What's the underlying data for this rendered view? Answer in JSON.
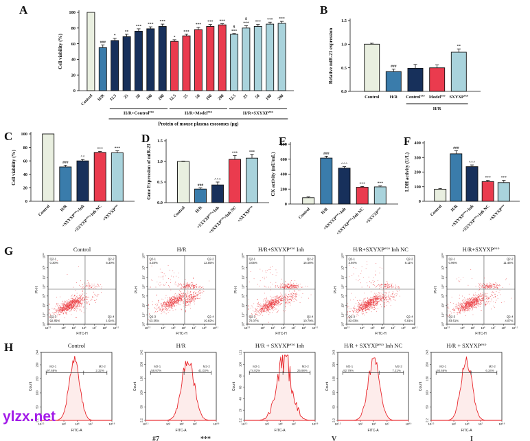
{
  "letters": {
    "a": "A",
    "b": "B",
    "c": "C",
    "d": "D",
    "e": "E",
    "f": "F",
    "g": "G",
    "h": "H"
  },
  "watermark": {
    "text": "ylzx.net",
    "color": "#a21ae8"
  },
  "artifacts": [
    {
      "text": "#7"
    },
    {
      "text": "***"
    },
    {
      "text": "V"
    },
    {
      "text": "I"
    }
  ],
  "palette": {
    "cream": "#e9efe0",
    "blue": "#3a7cab",
    "navy": "#17305b",
    "red": "#ea3b4e",
    "ltblue": "#a9d3dc",
    "bar_stroke": "#111111",
    "dot": "#e8252a",
    "hist_fill": "#fdeceb",
    "hist_stroke": "#e8252a",
    "axis": "#111111"
  },
  "chart_data": [
    {
      "id": "A",
      "type": "bar",
      "ylabel": "Cell viability (%)",
      "ylim": [
        0,
        100
      ],
      "yticks": [
        0,
        20,
        40,
        60,
        80,
        100
      ],
      "categories": [
        "Control",
        "H/R",
        "12.5",
        "25",
        "50",
        "100",
        "200",
        "12.5",
        "25",
        "50",
        "100",
        "200",
        "12.5",
        "25",
        "50",
        "100",
        "200"
      ],
      "values": [
        100,
        55,
        64,
        69,
        76,
        79,
        82,
        63,
        70,
        78,
        82,
        84,
        72,
        80,
        82,
        85,
        86
      ],
      "errors": [
        0,
        3.5,
        3,
        3,
        3,
        2.5,
        3,
        2,
        2,
        3,
        2.5,
        1.5,
        1,
        3,
        2.5,
        2.5,
        2.5
      ],
      "sig": [
        "",
        "###",
        "*",
        "**",
        "***",
        "***",
        "***",
        "*",
        "***",
        "***",
        "***",
        "***",
        "$\n***",
        "$\n***",
        "***",
        "***",
        "***"
      ],
      "colors": [
        "cream",
        "blue",
        "navy",
        "navy",
        "navy",
        "navy",
        "navy",
        "red",
        "red",
        "red",
        "red",
        "red",
        "ltblue",
        "ltblue",
        "ltblue",
        "ltblue",
        "ltblue"
      ],
      "groups": [
        {
          "label": "H/R+Control^{exo}",
          "from": 2,
          "to": 6
        },
        {
          "label": "H/R+Model^{exo}",
          "from": 7,
          "to": 11
        },
        {
          "label": "H/R+SXYXP^{exo}",
          "from": 12,
          "to": 16
        }
      ],
      "xlabel": "Protein of mouse plasma exosomes (μg)",
      "xspan": [
        2,
        16
      ]
    },
    {
      "id": "B",
      "type": "bar",
      "ylabel": "Relative miR-21 expression",
      "ylim": [
        0,
        1.5
      ],
      "yticks": [
        "0.0",
        "0.5",
        "1.0",
        "1.5"
      ],
      "categories": [
        "Control",
        "H/R",
        "Control^{exo}",
        "Model^{exo}",
        "SXYXP^{exo}"
      ],
      "values": [
        1.0,
        0.42,
        0.49,
        0.5,
        0.83
      ],
      "errors": [
        0.02,
        0.05,
        0.08,
        0.06,
        0.07
      ],
      "sig": [
        "",
        "###",
        "",
        "",
        "**"
      ],
      "colors": [
        "cream",
        "blue",
        "navy",
        "red",
        "ltblue"
      ],
      "groups": [
        {
          "label": "H/R",
          "from": 2,
          "to": 4
        }
      ]
    },
    {
      "id": "C",
      "type": "bar",
      "ylabel": "Cell viability (%)",
      "ylim": [
        0,
        100
      ],
      "yticks": [
        0,
        20,
        40,
        60,
        80,
        100
      ],
      "categories": [
        "Control",
        "H/R",
        "+SXYXP^{exo}+Inh",
        "+SXYXP^{exo}+Inh NC",
        "+SXYXP^{exo}"
      ],
      "values": [
        100,
        51,
        60,
        72.5,
        72
      ],
      "errors": [
        0,
        2.5,
        2,
        1.5,
        3
      ],
      "sig": [
        "",
        "###",
        "^^",
        "***",
        "***"
      ],
      "colors": [
        "cream",
        "blue",
        "navy",
        "red",
        "ltblue"
      ]
    },
    {
      "id": "D",
      "type": "bar",
      "ylabel": "Gene Expression of miR-21",
      "ylim": [
        0,
        1.5
      ],
      "yticks": [
        "0.0",
        "0.5",
        "1.0",
        "1.5"
      ],
      "categories": [
        "Control",
        "H/R",
        "+SXYXP^{exo}+Inh",
        "+SXYXP^{exo}+Inh NC",
        "+SXYXP^{exo}"
      ],
      "values": [
        1.0,
        0.33,
        0.43,
        1.05,
        1.08
      ],
      "errors": [
        0.01,
        0.03,
        0.07,
        0.09,
        0.09
      ],
      "sig": [
        "",
        "###",
        "^^^",
        "***",
        "***"
      ],
      "colors": [
        "cream",
        "blue",
        "navy",
        "red",
        "ltblue"
      ]
    },
    {
      "id": "E",
      "type": "bar",
      "ylabel": "CK activity (mU/mL)",
      "ylim": [
        0,
        800
      ],
      "yticks": [
        0,
        200,
        400,
        600,
        800
      ],
      "categories": [
        "Control",
        "H/R",
        "+SXYXP^{exo}+Inh",
        "+SXYXP^{exo}+Inh NC",
        "+SXYXP^{exo}"
      ],
      "values": [
        85,
        615,
        480,
        225,
        230
      ],
      "errors": [
        10,
        25,
        20,
        10,
        12
      ],
      "sig": [
        "",
        "###",
        "^^^",
        "***",
        "***"
      ],
      "colors": [
        "cream",
        "blue",
        "navy",
        "red",
        "ltblue"
      ]
    },
    {
      "id": "F",
      "type": "bar",
      "ylabel": "LDH activity (U/L)",
      "ylim": [
        0,
        400
      ],
      "yticks": [
        0,
        100,
        200,
        300,
        400
      ],
      "categories": [
        "Control",
        "H/R",
        "+SXYXP^{exo}+Inh",
        "+SXYXP^{exo}+Inh NC",
        "+SXYXP^{exo}"
      ],
      "values": [
        83,
        325,
        237,
        135,
        128
      ],
      "errors": [
        5,
        22,
        12,
        8,
        15
      ],
      "sig": [
        "",
        "###",
        "^^^",
        "***",
        "***"
      ],
      "colors": [
        "cream",
        "blue",
        "navy",
        "red",
        "ltblue"
      ]
    },
    {
      "id": "G1",
      "type": "scatter",
      "title": "Control",
      "xlabel": "FITC-H",
      "ylabel": "PI-H",
      "xticks": [
        "2.5",
        "4",
        "5",
        "6",
        "7",
        "8",
        "9.1"
      ],
      "yticks": [
        "2",
        "3",
        "4",
        "5",
        "6",
        "7",
        "8",
        "9.3"
      ],
      "quadrant_labels": [
        "Q2-1",
        "Q2-2",
        "Q2-3",
        "Q2-4"
      ],
      "quadrant_values": [
        "0.30%",
        "5.30%",
        "92.86%",
        "1.54%"
      ]
    },
    {
      "id": "G2",
      "type": "scatter",
      "title": "H/R",
      "xlabel": "FITC-H",
      "ylabel": "PI-H",
      "xticks": [
        "2.5",
        "4",
        "5",
        "6",
        "7",
        "8",
        "9.1"
      ],
      "yticks": [
        "2",
        "3",
        "4",
        "5",
        "6",
        "7",
        "8",
        "9.3"
      ],
      "quadrant_labels": [
        "Q2-1",
        "Q2-2",
        "Q2-3",
        "Q2-4"
      ],
      "quadrant_values": [
        "4.28%",
        "12.55%",
        "63.35%",
        "19.82%"
      ]
    },
    {
      "id": "G3",
      "type": "scatter",
      "title": "H/R+SXYXP^{exo} Inh",
      "xlabel": "FITC-H",
      "ylabel": "PI-H",
      "xticks": [
        "2.5",
        "4",
        "5",
        "6",
        "7",
        "8",
        "9.1"
      ],
      "yticks": [
        "2",
        "3",
        "4",
        "5",
        "6",
        "7",
        "8",
        "9.3"
      ],
      "quadrant_labels": [
        "Q2-1",
        "Q2-2",
        "Q2-3",
        "Q2-4"
      ],
      "quadrant_values": [
        "3.05%",
        "16.08%",
        "70.07%",
        "10.79%"
      ]
    },
    {
      "id": "G4",
      "type": "scatter",
      "title": "H/R+SXYXP^{exo} Inh NC",
      "xlabel": "FITC-H",
      "ylabel": "PI-H",
      "xticks": [
        "2.5",
        "4",
        "5",
        "6",
        "7",
        "8",
        "9.1"
      ],
      "yticks": [
        "2",
        "3",
        "4",
        "5",
        "6",
        "7",
        "8",
        "9.3"
      ],
      "quadrant_labels": [
        "Q2-1",
        "Q2-2",
        "Q2-3",
        "Q2-4"
      ],
      "quadrant_values": [
        "3.94%",
        "8.11%",
        "82.03%",
        "5.91%"
      ]
    },
    {
      "id": "G5",
      "type": "scatter",
      "title": "H/R+SXYXP^{exo}",
      "xlabel": "FITC-H",
      "ylabel": "PI-H",
      "xticks": [
        "2.5",
        "4",
        "5",
        "6",
        "7",
        "8",
        "9.1"
      ],
      "yticks": [
        "2",
        "3",
        "4",
        "5",
        "6",
        "7",
        "8",
        "9.3"
      ],
      "quadrant_labels": [
        "Q2-1",
        "Q2-2",
        "Q2-3",
        "Q2-4"
      ],
      "quadrant_values": [
        "0.96%",
        "11.46%",
        "83.51%",
        "4.07%"
      ]
    },
    {
      "id": "H1",
      "type": "histogram",
      "title": "Control",
      "xlabel": "FITC-A",
      "ylabel": "Count",
      "xticks": [
        "3.3",
        "5",
        "6",
        "7",
        "8.6"
      ],
      "yticks": [
        244,
        200,
        150,
        100,
        50,
        2.2
      ],
      "markers": {
        "m1_label": "M2-1",
        "m1_value": "97.68%",
        "m2_label": "M2-2",
        "m2_value": "2.32%"
      }
    },
    {
      "id": "H2",
      "type": "histogram",
      "title": "H/R",
      "xlabel": "FITC-A",
      "ylabel": "Count",
      "xticks": [
        "3.3",
        "5",
        "6",
        "7",
        "8.6"
      ],
      "yticks": [
        242,
        200,
        150,
        100,
        50,
        2.2
      ],
      "markers": {
        "m1_label": "M2-1",
        "m1_value": "58.97%",
        "m2_label": "M2-2",
        "m2_value": "41.03%"
      }
    },
    {
      "id": "H3",
      "type": "histogram",
      "title": "H/R + SXYXP^{exo} Inh",
      "xlabel": "FITC-A",
      "ylabel": "Count",
      "xticks": [
        "3.3",
        "5",
        "6",
        "7",
        "8.6"
      ],
      "yticks": [
        121,
        100,
        80,
        60,
        40,
        20,
        2.2
      ],
      "markers": {
        "m1_label": "M2-1",
        "m1_value": "74.02%",
        "m2_label": "M2-2",
        "m2_value": "25.98%"
      }
    },
    {
      "id": "H4",
      "type": "histogram",
      "title": "H/R + SXYXP^{exo} Inh NC",
      "xlabel": "FITC-A",
      "ylabel": "Count",
      "xticks": [
        "3.3",
        "5",
        "6",
        "7",
        "8.6"
      ],
      "yticks": [
        243,
        200,
        150,
        100,
        50,
        2.2
      ],
      "markers": {
        "m1_label": "M2-1",
        "m1_value": "92.79%",
        "m2_label": "M2-2",
        "m2_value": "7.21%"
      }
    },
    {
      "id": "H5",
      "type": "histogram",
      "title": "H/R + SXYXP^{exo}",
      "xlabel": "FITC-A",
      "ylabel": "Count",
      "xticks": [
        "3.3",
        "5",
        "6",
        "7",
        "8.6"
      ],
      "yticks": [
        243,
        200,
        150,
        100,
        50,
        2.2
      ],
      "markers": {
        "m1_label": "M2-1",
        "m1_value": "93.66%",
        "m2_label": "M2-2",
        "m2_value": "6.34%"
      }
    }
  ]
}
